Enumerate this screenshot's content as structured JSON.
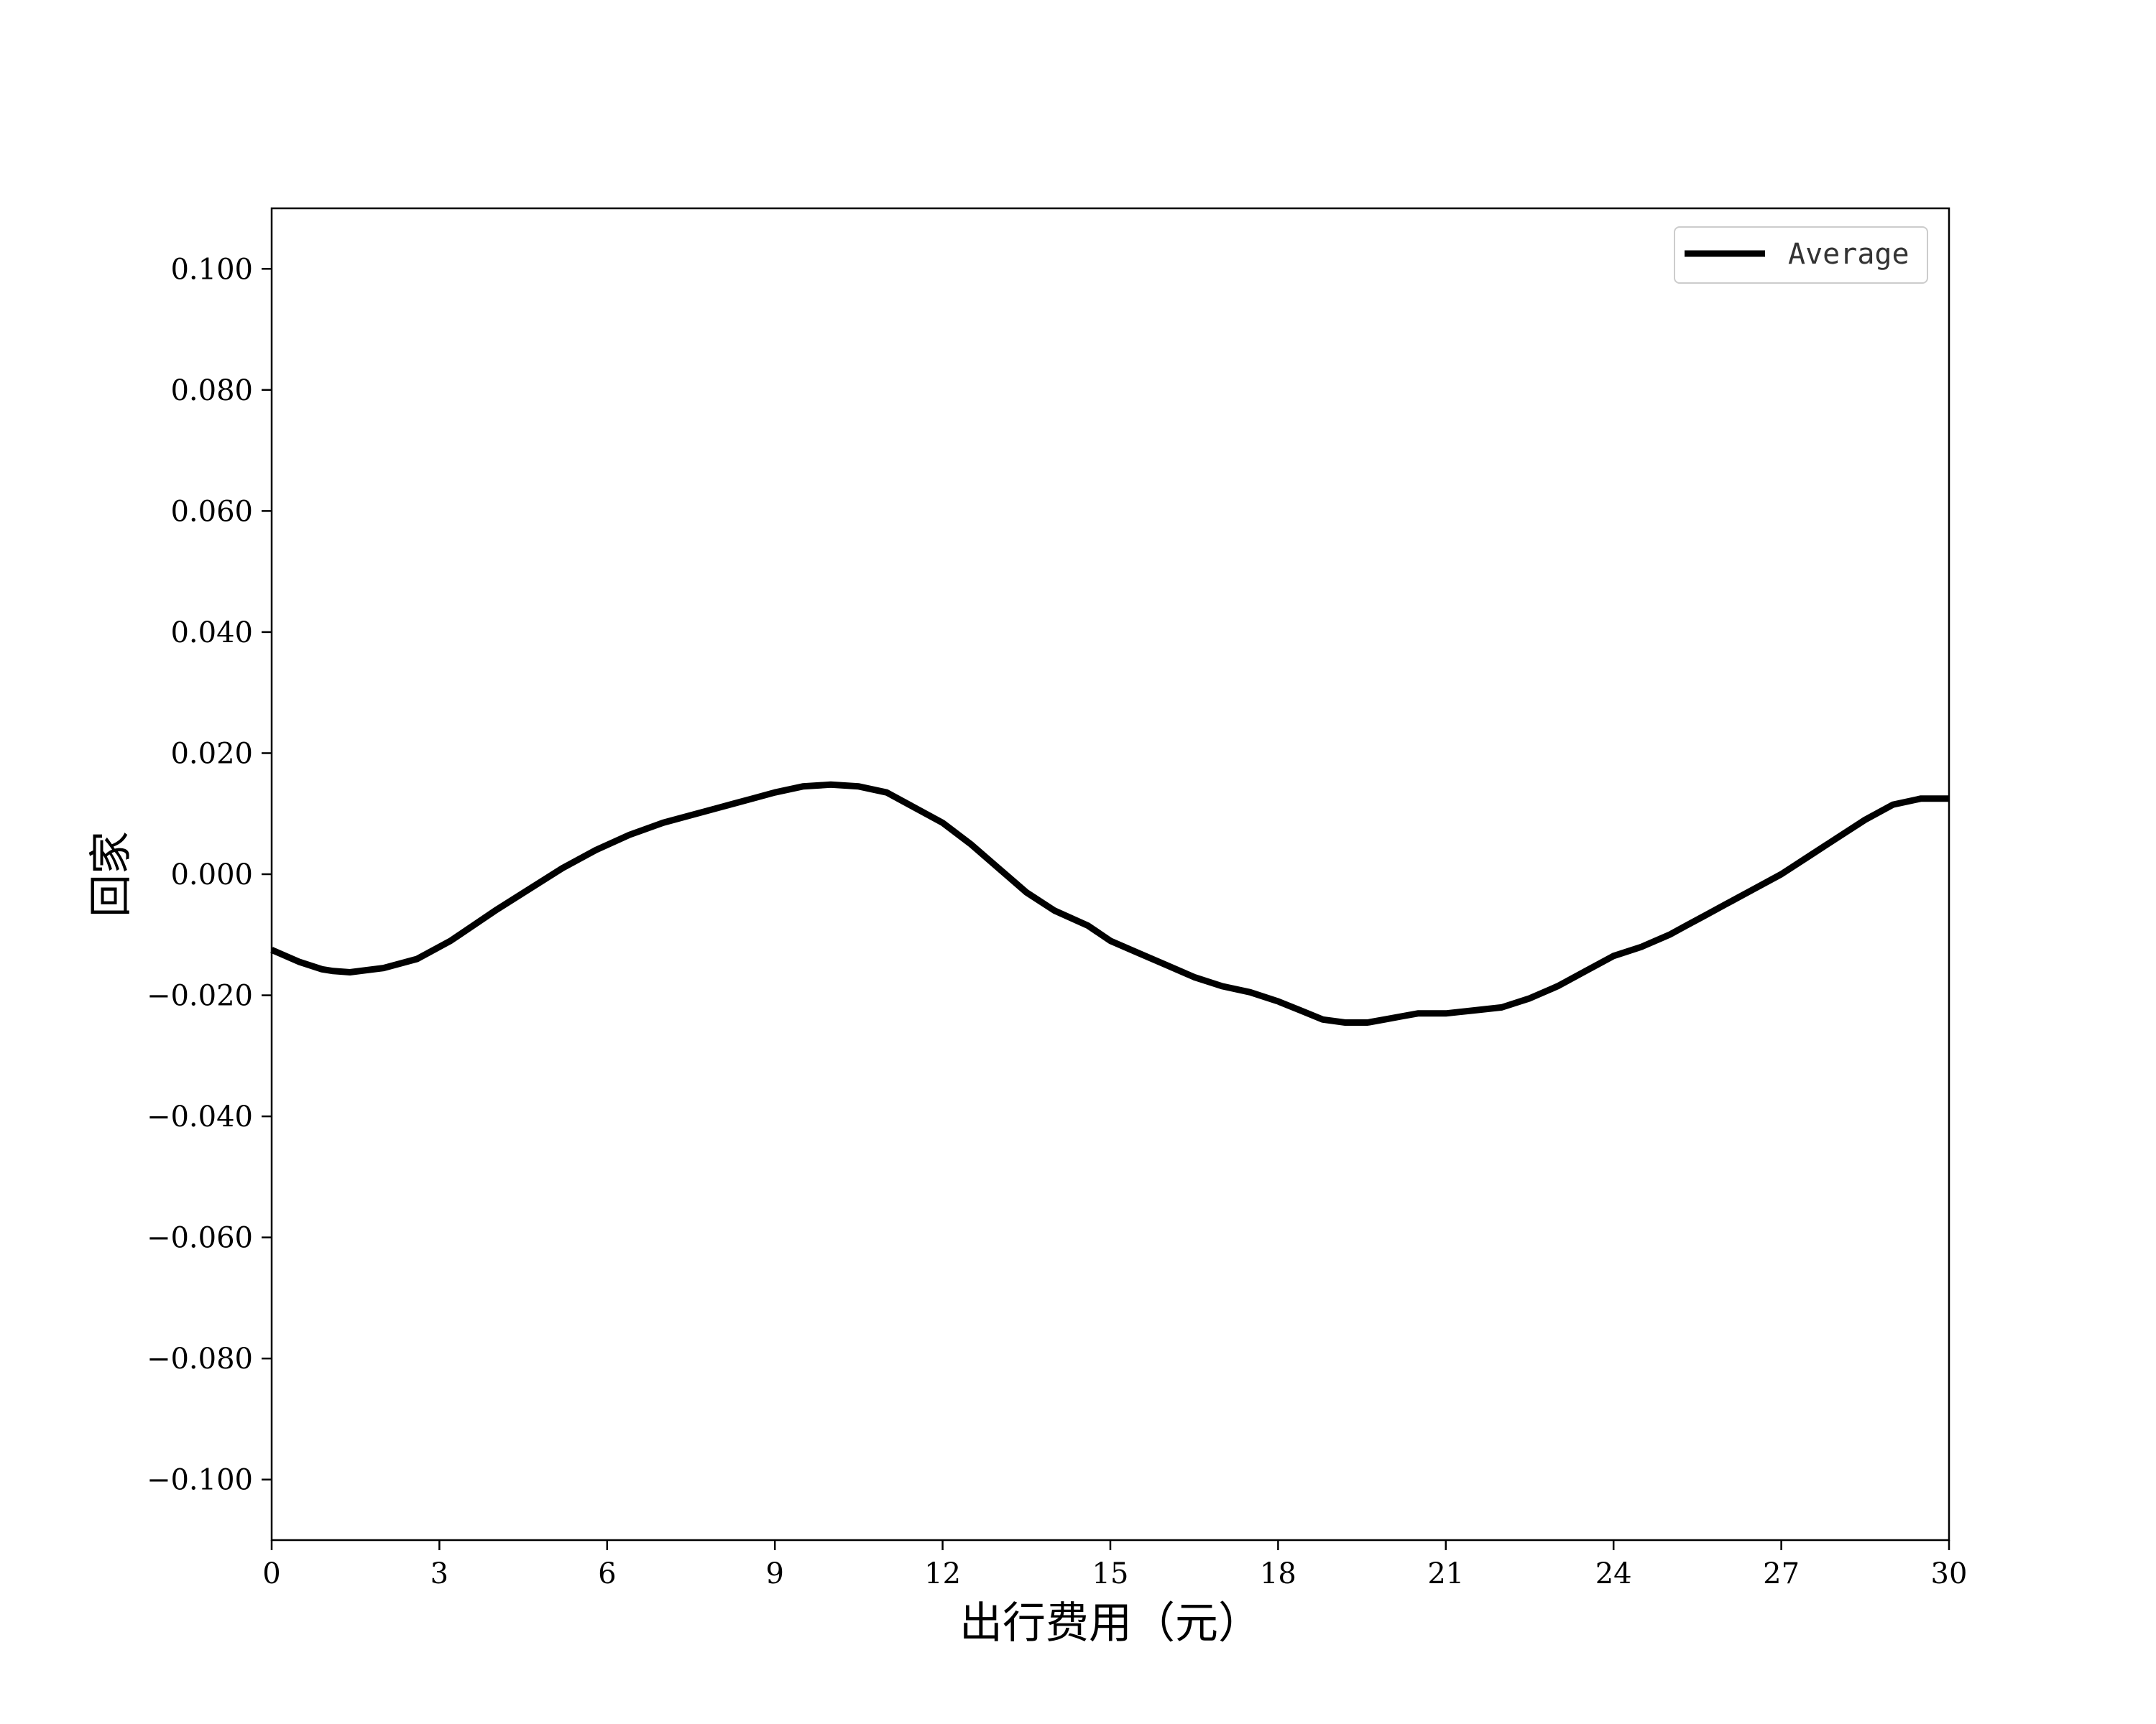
{
  "chart_data": {
    "type": "line",
    "title": "",
    "xlabel": "出行费用（元）",
    "ylabel": "回家",
    "xlim": [
      0,
      30
    ],
    "ylim": [
      -0.11,
      0.11
    ],
    "xticks": [
      0,
      3,
      6,
      9,
      12,
      15,
      18,
      21,
      24,
      27,
      30
    ],
    "xtick_labels": [
      "0",
      "3",
      "6",
      "9",
      "12",
      "15",
      "18",
      "21",
      "24",
      "27",
      "30"
    ],
    "yticks": [
      0.1,
      0.08,
      0.06,
      0.04,
      0.02,
      0.0,
      -0.02,
      -0.04,
      -0.06,
      -0.08,
      -0.1
    ],
    "ytick_labels": [
      "0.100",
      "0.080",
      "0.060",
      "0.040",
      "0.020",
      "0.000",
      "−0.020",
      "−0.040",
      "−0.060",
      "−0.080",
      "−0.100"
    ],
    "grid": false,
    "legend": "top-right",
    "series": [
      {
        "name": "Average",
        "color": "#000000",
        "x": [
          0,
          0.5,
          0.9,
          1.1,
          1.4,
          2.0,
          2.6,
          3.2,
          4.0,
          4.6,
          5.2,
          5.8,
          6.4,
          7.0,
          8.0,
          8.6,
          9.0,
          9.5,
          10.0,
          10.5,
          11.0,
          11.5,
          12.0,
          12.5,
          13.0,
          13.5,
          14.0,
          14.6,
          15.0,
          15.5,
          16.0,
          16.5,
          17.0,
          17.5,
          18.0,
          18.4,
          18.8,
          19.2,
          19.6,
          19.9,
          20.2,
          20.5,
          21.0,
          21.5,
          22.0,
          22.5,
          23.0,
          23.5,
          24.0,
          24.5,
          25.0,
          25.3,
          25.6,
          26.0,
          26.5,
          27.0,
          27.5,
          28.0,
          28.5,
          29.0,
          29.5,
          30.0
        ],
        "y": [
          -0.0125,
          -0.0145,
          -0.0157,
          -0.016,
          -0.0162,
          -0.0155,
          -0.014,
          -0.011,
          -0.006,
          -0.0025,
          0.001,
          0.004,
          0.0065,
          0.0085,
          0.011,
          0.0125,
          0.0135,
          0.0145,
          0.0148,
          0.0145,
          0.0135,
          0.011,
          0.0085,
          0.005,
          0.001,
          -0.003,
          -0.006,
          -0.0085,
          -0.011,
          -0.013,
          -0.015,
          -0.017,
          -0.0185,
          -0.0195,
          -0.021,
          -0.0225,
          -0.024,
          -0.0245,
          -0.0245,
          -0.024,
          -0.0235,
          -0.023,
          -0.023,
          -0.0225,
          -0.022,
          -0.0205,
          -0.0185,
          -0.016,
          -0.0135,
          -0.012,
          -0.01,
          -0.0085,
          -0.007,
          -0.005,
          -0.0025,
          0.0,
          0.003,
          0.006,
          0.009,
          0.0115,
          0.0125,
          0.0125
        ]
      }
    ]
  }
}
